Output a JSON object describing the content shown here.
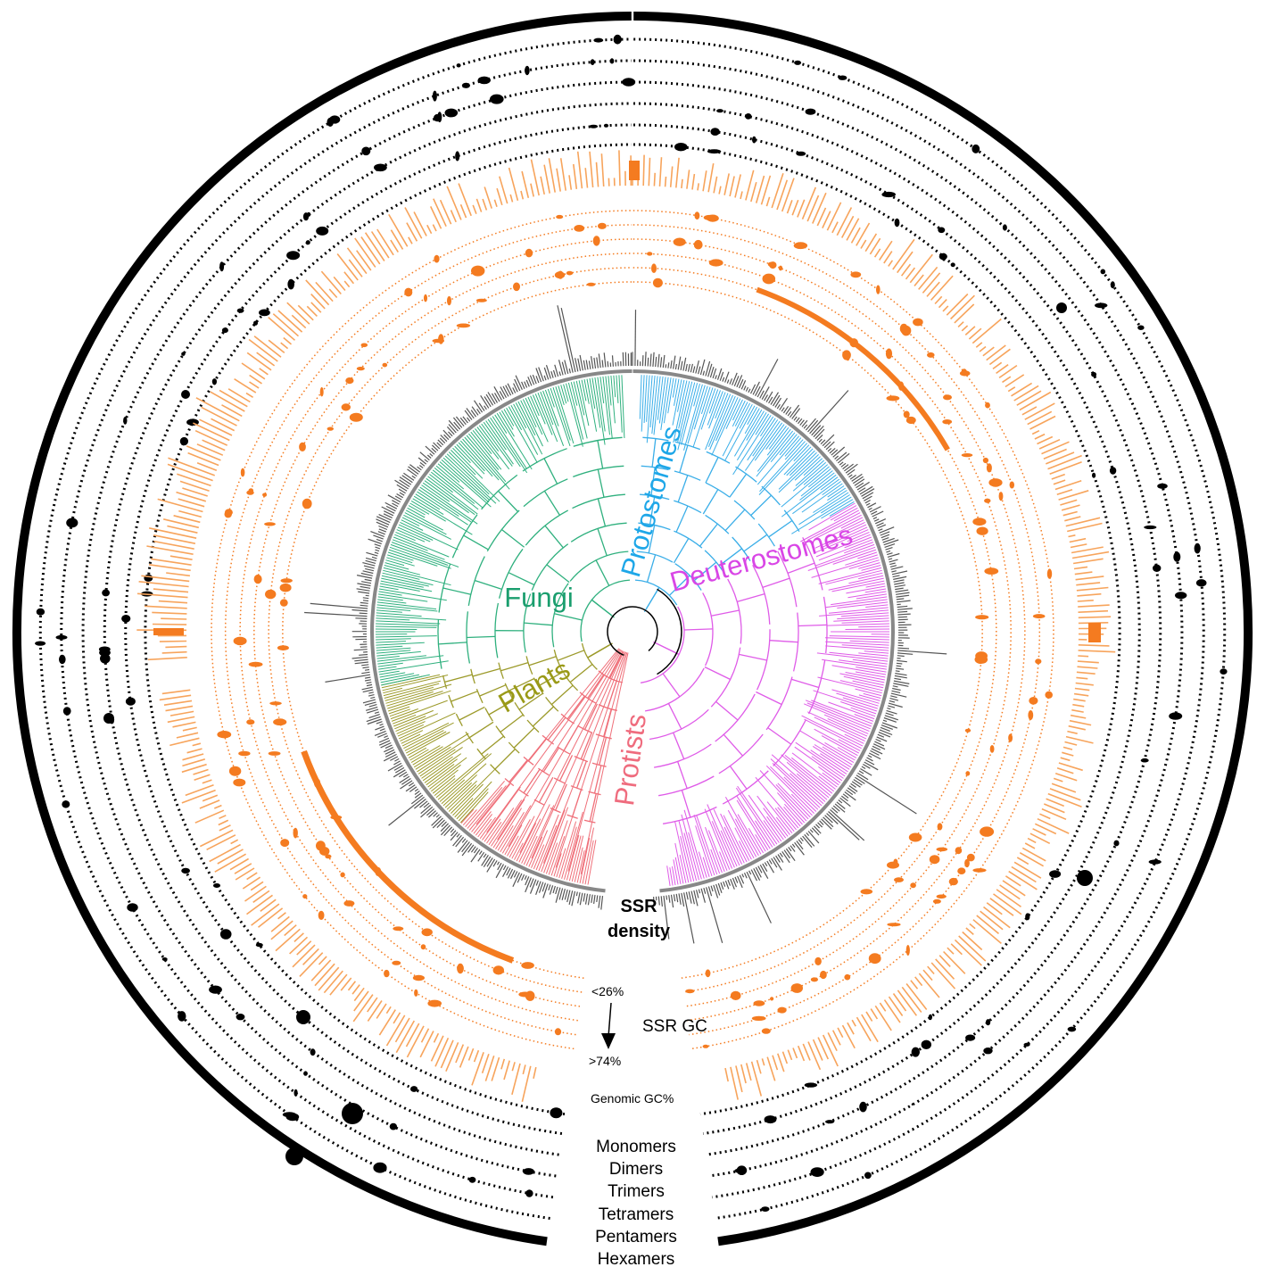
{
  "clades": [
    {
      "key": "fungi",
      "label": "Fungi",
      "color": "#1a9e6e",
      "branch_color": "#2fb07e"
    },
    {
      "key": "protostomes",
      "label": "Protostomes",
      "color": "#1ea7e8",
      "branch_color": "#3aaee8"
    },
    {
      "key": "deuterostomes",
      "label": "Deuterostomes",
      "color": "#d946e6",
      "branch_color": "#df5be8"
    },
    {
      "key": "plants",
      "label": "Plants",
      "color": "#9a9a17",
      "branch_color": "#9c9a2a"
    },
    {
      "key": "protists",
      "label": "Protists",
      "color": "#ef6c7e",
      "branch_color": "#ef6f79"
    }
  ],
  "labels": {
    "ssr_density": "SSR\ndensity",
    "ssr_gc_low": "<26%",
    "ssr_gc": "SSR GC",
    "ssr_gc_high": ">74%",
    "genomic_gc": "Genomic GC%",
    "repeat_classes": [
      "Monomers",
      "Dimers",
      "Trimers",
      "Tetramers",
      "Pentamers",
      "Hexamers"
    ]
  },
  "colors": {
    "density_bars": "#555555",
    "ssr_gc_rings": "#f47b20",
    "genomic_gc_bars": "#f7a45c",
    "repeat_rings": "#000000",
    "tree_ring": "#888888"
  }
}
